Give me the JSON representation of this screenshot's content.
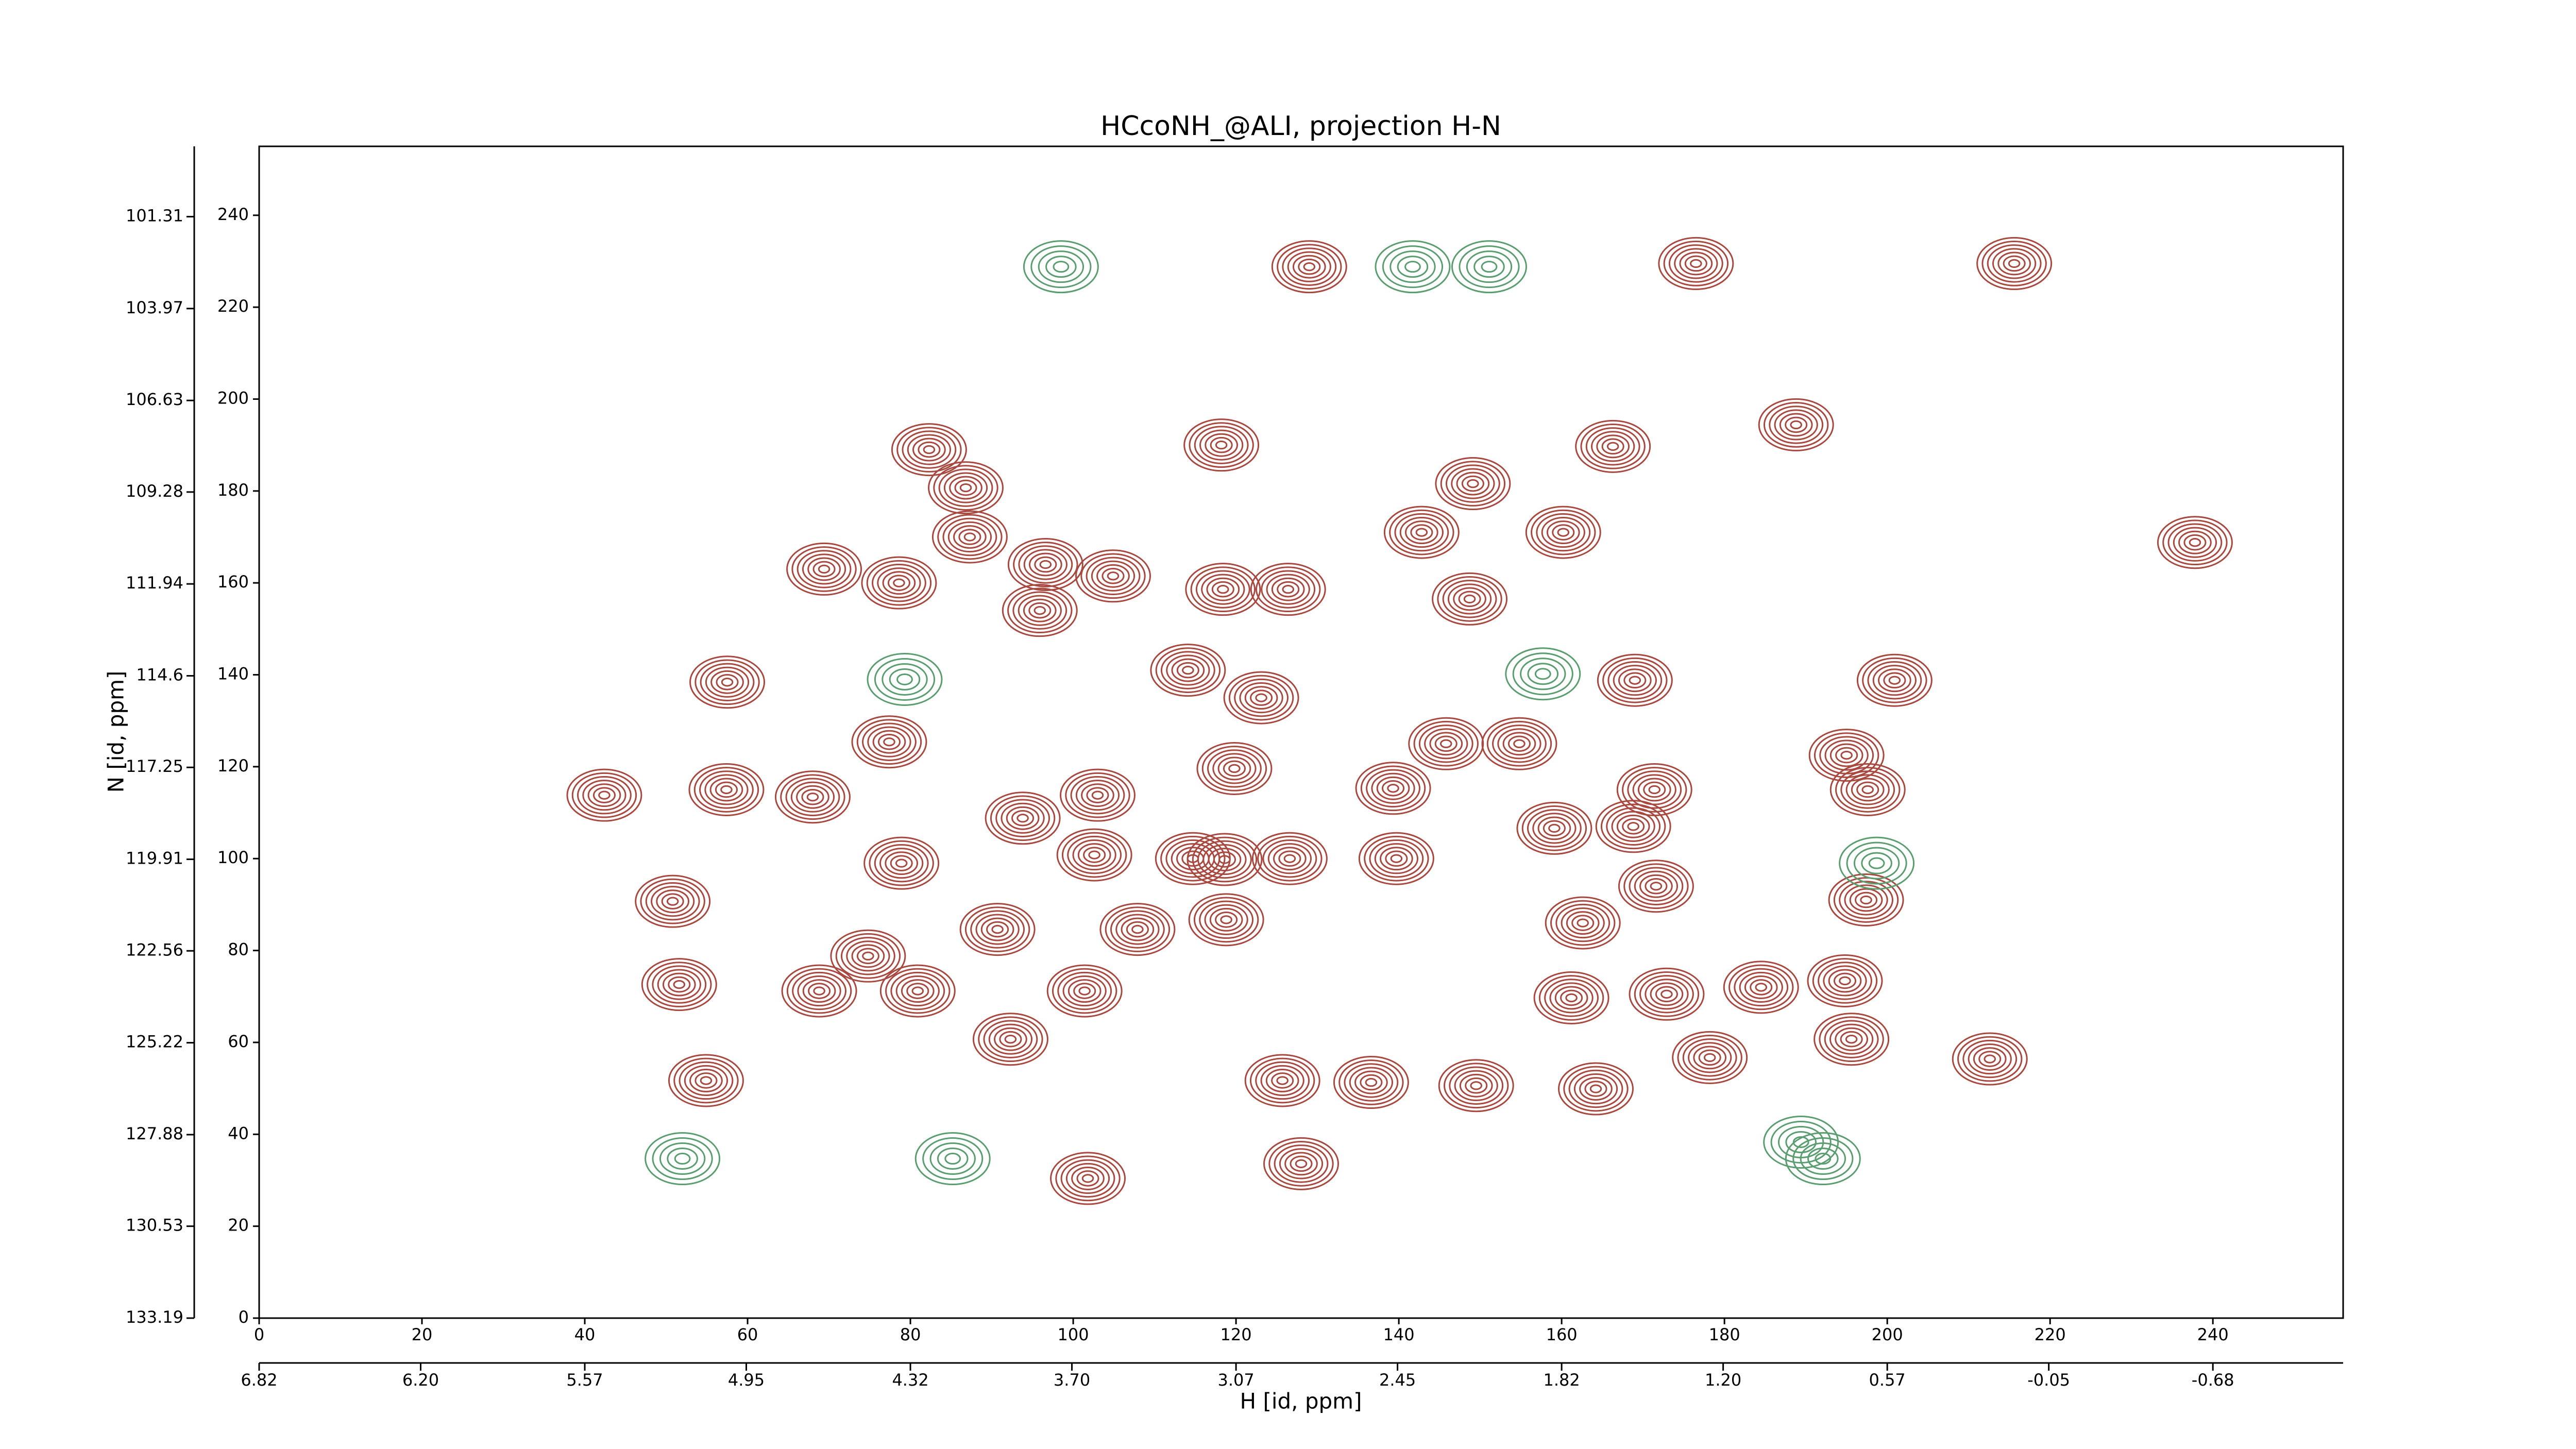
{
  "chart_data": {
    "type": "contour",
    "title": "HCcoNH_@ALI, projection H-N",
    "xlabel": "H [id, ppm]",
    "ylabel": "N [id, ppm]",
    "xlim": [
      0,
      256
    ],
    "ylim": [
      0,
      255
    ],
    "xticks": [
      0,
      20,
      40,
      60,
      80,
      100,
      120,
      140,
      160,
      180,
      200,
      220,
      240
    ],
    "yticks": [
      0,
      20,
      40,
      60,
      80,
      100,
      120,
      140,
      160,
      180,
      200,
      220,
      240
    ],
    "x2lim": [
      6.82,
      -1.18
    ],
    "x2ticks": [
      6.82,
      {
        "value": 6.2,
        "label": "6.20"
      },
      5.57,
      4.95,
      4.32,
      {
        "value": 3.7,
        "label": "3.70"
      },
      3.07,
      2.45,
      1.82,
      {
        "value": 1.2,
        "label": "1.20"
      },
      0.57,
      -0.05,
      -0.68
    ],
    "y2lim": [
      133.19,
      99.275
    ],
    "y2ticks": [
      133.19,
      130.53,
      127.88,
      125.22,
      122.56,
      119.91,
      117.25,
      114.6,
      111.94,
      109.28,
      106.63,
      103.97,
      101.31
    ],
    "series": [
      {
        "color": "#a8483f",
        "x": [
          78.6,
          69.4,
          104.9,
          95.9,
          96.6,
          118.2,
          118.4,
          126.4,
          82.3,
          86.8,
          87.3,
          149.1,
          142.8,
          160.2,
          148.7,
          57.5,
          77.4,
          57.4,
          42.4,
          68,
          103,
          93.8,
          102.6,
          78.9,
          90.7,
          107.9,
          118.8,
          118.6,
          126.6,
          114.7,
          139.7,
          119.8,
          123.1,
          114.1,
          145.8,
          154.8,
          139.3,
          169,
          171.4,
          200.9,
          197.6,
          195,
          159.1,
          168.8,
          171.6,
          162.6,
          197.4,
          50.8,
          51.6,
          80.9,
          68.8,
          101.4,
          92.3,
          74.8,
          54.9,
          136.6,
          125.7,
          161.2,
          172.9,
          184.5,
          194.8,
          195.6,
          164.2,
          149.5,
          178.2,
          212.6,
          101.8,
          128,
          129,
          176.5,
          215.6,
          188.8,
          166.3,
          237.8
        ],
        "y": [
          160,
          163,
          161.5,
          154,
          164,
          190,
          158.6,
          158.6,
          189,
          180.7,
          170,
          181.6,
          171,
          171,
          156.5,
          138.4,
          125.4,
          115,
          113.8,
          113.4,
          113.8,
          108.8,
          100.8,
          99,
          84.6,
          84.6,
          86.7,
          99.8,
          100,
          100,
          100,
          119.6,
          135,
          141,
          125,
          125,
          115.3,
          138.8,
          115,
          138.8,
          115,
          122.5,
          106.6,
          107,
          94,
          86,
          91,
          90.7,
          72.6,
          71.2,
          71.2,
          71.2,
          60.7,
          78.8,
          51.7,
          51.3,
          51.7,
          69.7,
          70.5,
          72,
          73.4,
          60.7,
          49.9,
          50.6,
          56.7,
          56.4,
          30.4,
          33.6,
          228.8,
          229.5,
          229.5,
          194.4,
          189.7,
          168.8
        ]
      },
      {
        "color": "#5a9e70",
        "x": [
          98.5,
          141.7,
          151.1,
          52,
          85.2,
          192.1,
          189.4,
          157.7,
          79.3,
          198.7
        ],
        "y": [
          228.8,
          228.8,
          228.8,
          34.7,
          34.7,
          34.7,
          38.3,
          140.2,
          139,
          99
        ]
      }
    ]
  }
}
